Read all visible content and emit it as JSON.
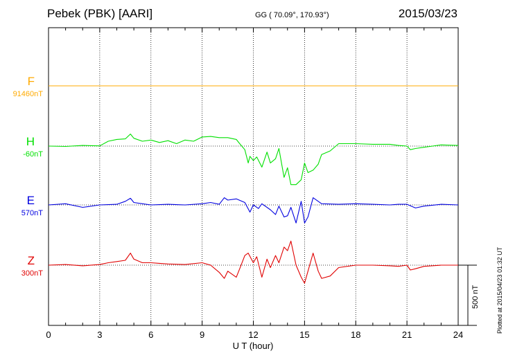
{
  "header": {
    "station": "Pebek (PBK)  [AARI]",
    "coords": "GG ( 70.09°, 170.93°)",
    "date": "2015/03/23"
  },
  "footer": {
    "plotted_at": "Plotted at 2015/04/23 01:32 UT",
    "scale_bar_label": "500 nT"
  },
  "chart_data": {
    "type": "line",
    "xlabel": "U T (hour)",
    "xlim": [
      0,
      24
    ],
    "xticks": [
      "0",
      "3",
      "6",
      "9",
      "12",
      "15",
      "18",
      "21",
      "24"
    ],
    "scale_bar_nT": 500,
    "grid": true,
    "series": [
      {
        "name": "F",
        "baseline_label": "91460nT",
        "color": "#ffaa00",
        "baseline_index": 0,
        "x": [
          0,
          24
        ],
        "values": [
          0,
          0
        ]
      },
      {
        "name": "H",
        "baseline_label": "-60nT",
        "color": "#00e000",
        "baseline_index": 1,
        "x": [
          0,
          1,
          2,
          3,
          3.5,
          4,
          4.5,
          4.8,
          5,
          5.5,
          6,
          6.5,
          7,
          7.5,
          8,
          8.5,
          9,
          9.5,
          10,
          10.5,
          11,
          11.2,
          11.5,
          11.7,
          11.8,
          12,
          12.2,
          12.5,
          12.8,
          13,
          13.3,
          13.5,
          13.8,
          14,
          14.2,
          14.5,
          14.8,
          15,
          15.2,
          15.5,
          15.8,
          16,
          16.5,
          17,
          18,
          19,
          20,
          20.5,
          21,
          21.2,
          21.5,
          22,
          22.5,
          23,
          24
        ],
        "values": [
          0,
          -3,
          5,
          2,
          40,
          55,
          60,
          100,
          65,
          40,
          50,
          30,
          45,
          20,
          50,
          40,
          75,
          80,
          70,
          70,
          55,
          20,
          -30,
          -140,
          -85,
          -120,
          -90,
          -175,
          -50,
          -140,
          -105,
          -20,
          -260,
          -180,
          -320,
          -320,
          -280,
          -140,
          -220,
          -200,
          -150,
          -70,
          -40,
          20,
          20,
          15,
          15,
          5,
          0,
          -30,
          -20,
          -10,
          0,
          10,
          5
        ]
      },
      {
        "name": "E",
        "baseline_label": "570nT",
        "color": "#0000e0",
        "baseline_index": 2,
        "x": [
          0,
          1,
          2,
          3,
          4,
          4.5,
          4.8,
          5,
          5.5,
          6,
          7,
          8,
          9,
          9.5,
          10,
          10.3,
          10.5,
          11,
          11.5,
          11.8,
          12,
          12.3,
          12.5,
          13,
          13.3,
          13.5,
          13.8,
          14,
          14.2,
          14.5,
          14.8,
          15,
          15.2,
          15.5,
          16,
          17,
          18,
          19,
          20,
          20.5,
          21,
          21.5,
          22,
          23,
          24
        ],
        "values": [
          0,
          10,
          -20,
          0,
          5,
          30,
          55,
          20,
          10,
          0,
          5,
          0,
          10,
          20,
          5,
          60,
          40,
          50,
          20,
          -60,
          0,
          -30,
          10,
          -40,
          -80,
          -10,
          -100,
          -90,
          -20,
          -150,
          30,
          -150,
          -100,
          60,
          10,
          5,
          10,
          5,
          0,
          5,
          5,
          -25,
          -10,
          5,
          0
        ]
      },
      {
        "name": "Z",
        "baseline_label": "300nT",
        "color": "#e00000",
        "baseline_index": 3,
        "x": [
          0,
          1,
          2,
          3,
          3.5,
          4,
          4.5,
          4.8,
          5,
          5.5,
          6,
          6.5,
          7,
          8,
          9,
          9.5,
          10,
          10.3,
          10.5,
          11,
          11.2,
          11.5,
          11.7,
          12,
          12.2,
          12.5,
          12.8,
          13,
          13.3,
          13.5,
          13.8,
          14,
          14.2,
          14.5,
          14.8,
          15,
          15.2,
          15.5,
          15.8,
          16,
          16.5,
          17,
          18,
          19,
          20,
          20.5,
          21,
          21.2,
          21.5,
          22,
          23,
          24
        ],
        "values": [
          0,
          5,
          -5,
          5,
          20,
          30,
          40,
          100,
          50,
          20,
          20,
          15,
          10,
          5,
          20,
          0,
          -60,
          -110,
          -50,
          -100,
          -30,
          80,
          100,
          20,
          70,
          -100,
          50,
          -20,
          80,
          20,
          150,
          120,
          200,
          0,
          -100,
          -150,
          -50,
          100,
          -50,
          -110,
          -90,
          -20,
          0,
          0,
          -5,
          -10,
          0,
          -40,
          -30,
          -10,
          0,
          0
        ]
      }
    ]
  }
}
